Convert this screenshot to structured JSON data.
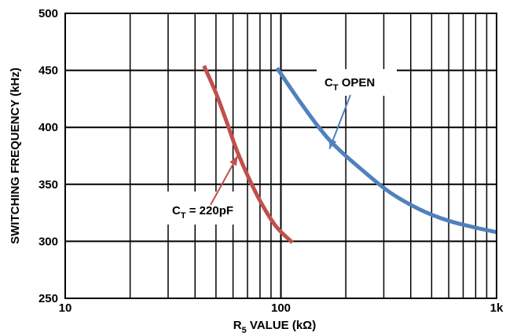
{
  "chart_data": {
    "type": "line",
    "xlabel": {
      "main": "R",
      "sub": "5",
      "rest": " VALUE (kΩ)"
    },
    "ylabel": "SWITCHING FREQUENCY (kHz)",
    "x_scale": "log",
    "xlim": [
      10,
      1000
    ],
    "ylim": [
      250,
      500
    ],
    "x_ticks": [
      {
        "value": 10,
        "label": "10"
      },
      {
        "value": 100,
        "label": "100"
      },
      {
        "value": 1000,
        "label": "1k"
      }
    ],
    "y_ticks": [
      {
        "value": 250,
        "label": "250"
      },
      {
        "value": 300,
        "label": "300"
      },
      {
        "value": 350,
        "label": "350"
      },
      {
        "value": 400,
        "label": "400"
      },
      {
        "value": 450,
        "label": "450"
      },
      {
        "value": 500,
        "label": "500"
      }
    ],
    "grid": true,
    "series": [
      {
        "name": "C_T = 220pF",
        "color": "#c0504d",
        "points": [
          [
            44,
            454
          ],
          [
            50,
            430
          ],
          [
            56,
            405
          ],
          [
            63,
            378
          ],
          [
            72,
            353
          ],
          [
            82,
            332
          ],
          [
            95,
            313
          ],
          [
            113,
            299
          ]
        ]
      },
      {
        "name": "C_T OPEN",
        "color": "#4f81bd",
        "points": [
          [
            96,
            452
          ],
          [
            120,
            425
          ],
          [
            150,
            400
          ],
          [
            180,
            383
          ],
          [
            240,
            362
          ],
          [
            320,
            343
          ],
          [
            440,
            328
          ],
          [
            600,
            318
          ],
          [
            800,
            312
          ],
          [
            1000,
            308
          ]
        ]
      }
    ],
    "annotations": [
      {
        "series": 0,
        "main": "C",
        "sub": "T",
        "rest": " = 220pF",
        "arrow_to": [
          63,
          375
        ]
      },
      {
        "series": 1,
        "main": "C",
        "sub": "T",
        "rest": " OPEN",
        "arrow_to": [
          168,
          381
        ]
      }
    ]
  }
}
